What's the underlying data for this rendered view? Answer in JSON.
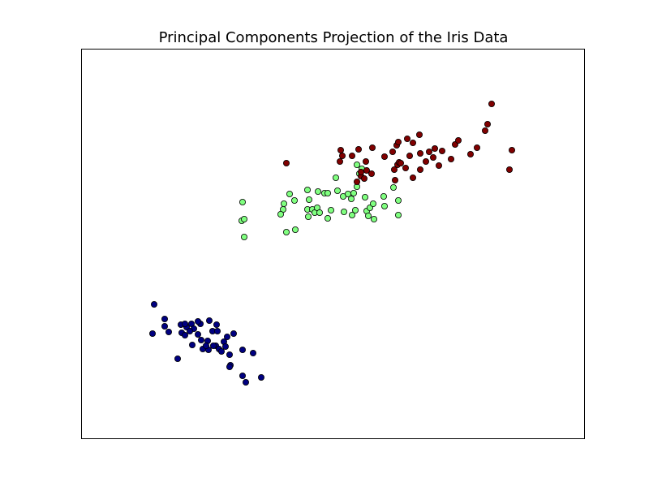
{
  "chart_data": {
    "type": "scatter",
    "title": "Principal Components Projection of the Iris Data",
    "xlim": [
      0,
      620
    ],
    "ylim": [
      0,
      480
    ],
    "series": [
      {
        "color": "#000080",
        "x": [
          90,
          103,
          88,
          103,
          108,
          123,
          130,
          136,
          139,
          134,
          147,
          158,
          167,
          124,
          128,
          144,
          162,
          168,
          188,
          180,
          137,
          148,
          156,
          166,
          150,
          157,
          170,
          176,
          173,
          183,
          199,
          212,
          178,
          119,
          184,
          183,
          199,
          203,
          222,
          163,
          154,
          144,
          128
        ],
        "y": [
          165,
          147,
          129,
          138,
          131,
          140,
          137,
          141,
          135,
          132,
          141,
          145,
          140,
          130,
          127,
          128,
          132,
          132,
          129,
          125,
          115,
          121,
          120,
          114,
          110,
          109,
          110,
          119,
          107,
          103,
          109,
          105,
          113,
          98,
          90,
          88,
          77,
          69,
          75,
          114,
          114,
          144,
          141
        ]
      },
      {
        "color": "#80ff80",
        "x": [
          199,
          198,
          201,
          201,
          250,
          257,
          249,
          246,
          263,
          253,
          264,
          279,
          281,
          279,
          280,
          285,
          288,
          292,
          291,
          294,
          300,
          304,
          304,
          308,
          314,
          316,
          324,
          323,
          329,
          333,
          336,
          334,
          338,
          340,
          340,
          343,
          346,
          350,
          352,
          354,
          356,
          361,
          360,
          373,
          374,
          385,
          391,
          391
        ],
        "y": [
          291,
          268,
          270,
          248,
          289,
          301,
          282,
          276,
          293,
          254,
          257,
          306,
          294,
          282,
          273,
          282,
          278,
          304,
          284,
          278,
          302,
          302,
          271,
          281,
          321,
          305,
          279,
          298,
          301,
          295,
          302,
          275,
          281,
          310,
          337,
          326,
          332,
          297,
          280,
          274,
          284,
          270,
          289,
          298,
          286,
          309,
          293,
          275
        ]
      },
      {
        "color": "#800000",
        "x": [
          253,
          320,
          322,
          334,
          319,
          342,
          359,
          340,
          345,
          349,
          345,
          351,
          352,
          358,
          374,
          384,
          389,
          391,
          402,
          409,
          417,
          405,
          418,
          425,
          429,
          436,
          434,
          445,
          390,
          392,
          394,
          386,
          387,
          400,
          409,
          418,
          441,
          456,
          461,
          465,
          480,
          488,
          498,
          501,
          506,
          528,
          531
        ],
        "y": [
          339,
          355,
          348,
          348,
          341,
          356,
          358,
          316,
          323,
          320,
          328,
          341,
          330,
          326,
          347,
          353,
          361,
          365,
          369,
          364,
          374,
          348,
          351,
          341,
          353,
          357,
          346,
          354,
          337,
          340,
          339,
          331,
          318,
          333,
          321,
          331,
          336,
          344,
          362,
          367,
          350,
          358,
          379,
          387,
          412,
          331,
          355
        ]
      }
    ]
  }
}
